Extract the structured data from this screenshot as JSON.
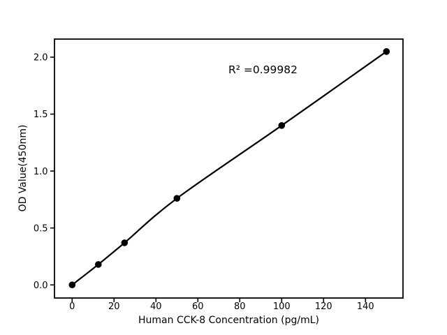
{
  "figure": {
    "background_color": "#ffffff",
    "foreground_color": "#000000"
  },
  "chart_data": {
    "type": "scatter",
    "title": "",
    "xlabel": "Human CCK-8 Concentration (pg/mL)",
    "ylabel": "OD Value(450nm)",
    "annotation": "R² =0.99982",
    "x": [
      0,
      12.5,
      25,
      50,
      100,
      150
    ],
    "y": [
      0.0,
      0.18,
      0.37,
      0.76,
      1.4,
      2.05
    ],
    "fit_line": true,
    "marker": "circle",
    "marker_color": "#000000",
    "line_color": "#000000",
    "xlim": [
      -8.43,
      157.9
    ],
    "ylim": [
      -0.115,
      2.159
    ],
    "x_ticks": [
      0,
      20,
      40,
      60,
      80,
      100,
      120,
      140
    ],
    "x_tick_labels": [
      "0",
      "20",
      "40",
      "60",
      "80",
      "100",
      "120",
      "140"
    ],
    "y_ticks": [
      0.0,
      0.5,
      1.0,
      1.5,
      2.0
    ],
    "y_tick_labels": [
      "0.0",
      "0.5",
      "1.0",
      "1.5",
      "2.0"
    ],
    "grid": false,
    "legend": null
  }
}
